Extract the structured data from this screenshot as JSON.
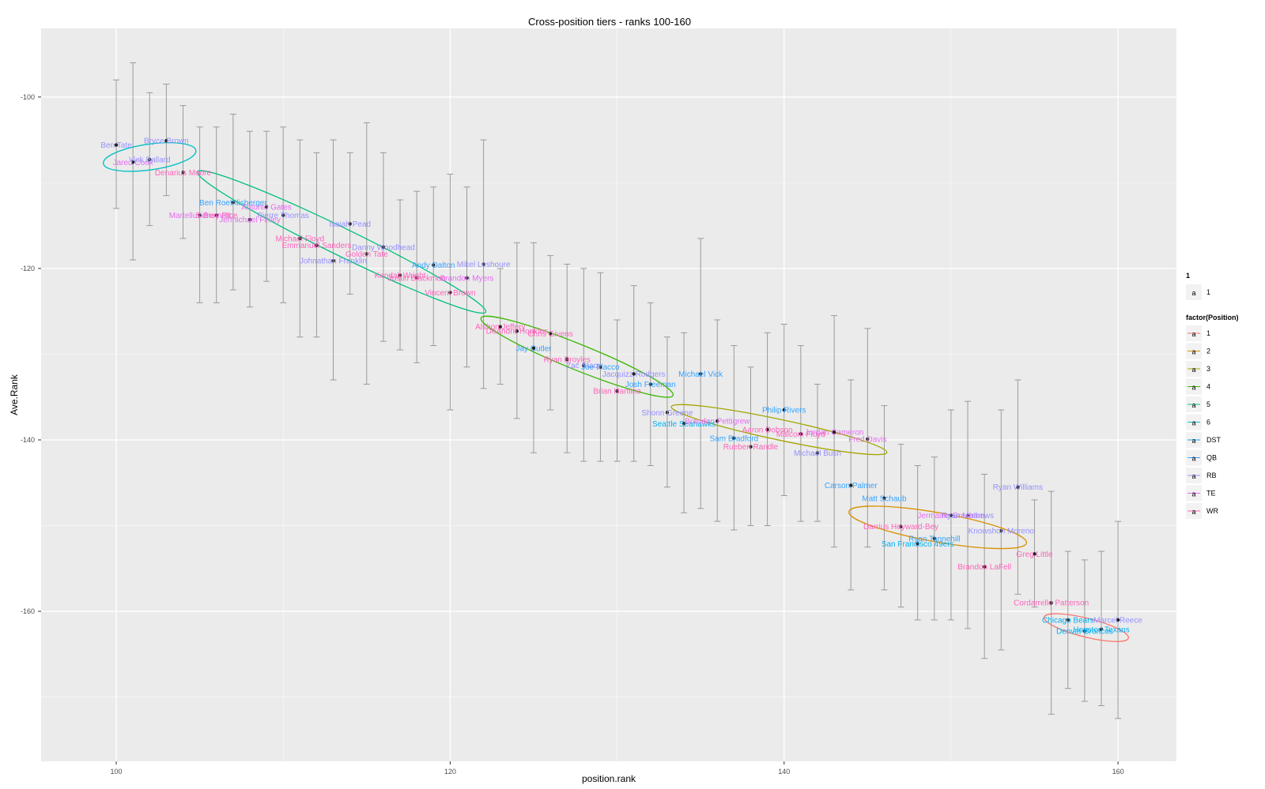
{
  "chart_data": {
    "type": "scatter",
    "title": "Cross-position tiers - ranks 100-160",
    "xlabel": "position.rank",
    "ylabel": "Ave.Rank",
    "xlim": [
      95.5,
      163.5
    ],
    "ylim": [
      -177.5,
      -92
    ],
    "x_ticks": [
      100,
      120,
      140,
      160
    ],
    "y_ticks": [
      -100,
      -120,
      -140,
      -160
    ],
    "grid": true,
    "legend_position": "right",
    "legend_titles": [
      "1",
      "factor(Position)"
    ],
    "legend_shape_entries": [
      {
        "label": "1",
        "glyph": "a"
      }
    ],
    "legend_entries": [
      {
        "label": "1",
        "color": "#F8766D",
        "glyph": "a"
      },
      {
        "label": "2",
        "color": "#D89000",
        "glyph": "a"
      },
      {
        "label": "3",
        "color": "#A3A500",
        "glyph": "a"
      },
      {
        "label": "4",
        "color": "#39B600",
        "glyph": "a"
      },
      {
        "label": "5",
        "color": "#00BF7D",
        "glyph": "a"
      },
      {
        "label": "6",
        "color": "#00BFC4",
        "glyph": "a"
      },
      {
        "label": "DST",
        "color": "#00B0F6",
        "glyph": "a"
      },
      {
        "label": "QB",
        "color": "#35A2FF",
        "glyph": "a"
      },
      {
        "label": "RB",
        "color": "#9590FF",
        "glyph": "a"
      },
      {
        "label": "TE",
        "color": "#E76BF3",
        "glyph": "a"
      },
      {
        "label": "WR",
        "color": "#FF62BC",
        "glyph": "a"
      }
    ],
    "tiers": [
      {
        "label": "6",
        "cx": 102,
        "cy": -107,
        "rx": 2.8,
        "ry": 1.5,
        "angle_deg": -8
      },
      {
        "label": "5",
        "cx": 113.5,
        "cy": -116.9,
        "rx": 9.6,
        "ry": 1.6,
        "angle_deg": 26
      },
      {
        "label": "4",
        "cx": 127.6,
        "cy": -130.3,
        "rx": 6.2,
        "ry": 1.5,
        "angle_deg": 22
      },
      {
        "label": "3",
        "cx": 139.7,
        "cy": -138.8,
        "rx": 6.6,
        "ry": 1.2,
        "angle_deg": 12
      },
      {
        "label": "2",
        "cx": 149.2,
        "cy": -150.2,
        "rx": 5.4,
        "ry": 1.7,
        "angle_deg": 10
      },
      {
        "label": "1",
        "cx": 158.1,
        "cy": -161.9,
        "rx": 2.6,
        "ry": 1.1,
        "angle_deg": 14
      }
    ],
    "points": [
      {
        "name": "Ben Tate",
        "pos": "RB",
        "x": 100,
        "y": -105.6,
        "ymin": -113,
        "ymax": -98
      },
      {
        "name": "Jared Cook",
        "pos": "TE",
        "x": 101,
        "y": -107.6,
        "ymin": -119,
        "ymax": -96
      },
      {
        "name": "Vick Ballard",
        "pos": "RB",
        "x": 102,
        "y": -107.3,
        "ymin": -115,
        "ymax": -99.5
      },
      {
        "name": "Bryce Brown",
        "pos": "RB",
        "x": 103,
        "y": -105.1,
        "ymin": -111.5,
        "ymax": -98.5
      },
      {
        "name": "Denarius Moore",
        "pos": "WR",
        "x": 104,
        "y": -108.8,
        "ymin": -116.5,
        "ymax": -101
      },
      {
        "name": "Martellus Bennett",
        "pos": "TE",
        "x": 105,
        "y": -113.8,
        "ymin": -124,
        "ymax": -103.5
      },
      {
        "name": "Sidney Rice",
        "pos": "WR",
        "x": 106,
        "y": -113.8,
        "ymin": -124,
        "ymax": -103.5
      },
      {
        "name": "Ben Roethlisberger",
        "pos": "QB",
        "x": 107,
        "y": -112.3,
        "ymin": -122.5,
        "ymax": -102
      },
      {
        "name": "Jermichael Finley",
        "pos": "TE",
        "x": 108,
        "y": -114.3,
        "ymin": -124.5,
        "ymax": -104
      },
      {
        "name": "Antonio Gates",
        "pos": "TE",
        "x": 109,
        "y": -112.8,
        "ymin": -121.5,
        "ymax": -104
      },
      {
        "name": "Pierre Thomas",
        "pos": "RB",
        "x": 110,
        "y": -113.8,
        "ymin": -124,
        "ymax": -103.5
      },
      {
        "name": "Michael Floyd",
        "pos": "WR",
        "x": 111,
        "y": -116.5,
        "ymin": -128,
        "ymax": -105
      },
      {
        "name": "Emmanuel Sanders",
        "pos": "WR",
        "x": 112,
        "y": -117.3,
        "ymin": -128,
        "ymax": -106.5
      },
      {
        "name": "Johnathan Franklin",
        "pos": "RB",
        "x": 113,
        "y": -119.1,
        "ymin": -133,
        "ymax": -105
      },
      {
        "name": "Isaiah Pead",
        "pos": "RB",
        "x": 114,
        "y": -114.8,
        "ymin": -123,
        "ymax": -106.5
      },
      {
        "name": "Golden Tate",
        "pos": "WR",
        "x": 115,
        "y": -118.3,
        "ymin": -133.5,
        "ymax": -103
      },
      {
        "name": "Danny Woodhead",
        "pos": "RB",
        "x": 116,
        "y": -117.5,
        "ymin": -128.5,
        "ymax": -106.5
      },
      {
        "name": "Kendall Wright",
        "pos": "WR",
        "x": 117,
        "y": -120.8,
        "ymin": -129.5,
        "ymax": -112
      },
      {
        "name": "Justin Blackmon",
        "pos": "WR",
        "x": 118,
        "y": -121.1,
        "ymin": -131,
        "ymax": -111
      },
      {
        "name": "Andy Dalton",
        "pos": "QB",
        "x": 119,
        "y": -119.6,
        "ymin": -129,
        "ymax": -110.5
      },
      {
        "name": "Vincent Brown",
        "pos": "WR",
        "x": 120,
        "y": -122.8,
        "ymin": -136.5,
        "ymax": -109
      },
      {
        "name": "Brandon Myers",
        "pos": "TE",
        "x": 121,
        "y": -121.1,
        "ymin": -131.5,
        "ymax": -110.5
      },
      {
        "name": "Mikel Leshoure",
        "pos": "RB",
        "x": 122,
        "y": -119.5,
        "ymin": -134,
        "ymax": -105
      },
      {
        "name": "Alshon Jeffery",
        "pos": "WR",
        "x": 123,
        "y": -126.8,
        "ymin": -133.5,
        "ymax": -120
      },
      {
        "name": "DeAndre Hopkins",
        "pos": "WR",
        "x": 124,
        "y": -127.3,
        "ymin": -137.5,
        "ymax": -117
      },
      {
        "name": "Jay Cutler",
        "pos": "QB",
        "x": 125,
        "y": -129.3,
        "ymin": -141.5,
        "ymax": -117
      },
      {
        "name": "Chris Givens",
        "pos": "WR",
        "x": 126,
        "y": -127.6,
        "ymin": -136.5,
        "ymax": -118.5
      },
      {
        "name": "Ryan Broyles",
        "pos": "WR",
        "x": 127,
        "y": -130.6,
        "ymin": -141.5,
        "ymax": -119.5
      },
      {
        "name": "Zac Stacy",
        "pos": "RB",
        "x": 128,
        "y": -131.3,
        "ymin": -142.5,
        "ymax": -120
      },
      {
        "name": "Joe Flacco",
        "pos": "QB",
        "x": 129,
        "y": -131.5,
        "ymin": -142.5,
        "ymax": -120.5
      },
      {
        "name": "Brian Hartline",
        "pos": "WR",
        "x": 130,
        "y": -134.3,
        "ymin": -142.5,
        "ymax": -126
      },
      {
        "name": "Jacquizz Rodgers",
        "pos": "RB",
        "x": 131,
        "y": -132.3,
        "ymin": -142.5,
        "ymax": -122
      },
      {
        "name": "Josh Freeman",
        "pos": "QB",
        "x": 132,
        "y": -133.5,
        "ymin": -143,
        "ymax": -124
      },
      {
        "name": "Shonn Greene",
        "pos": "RB",
        "x": 133,
        "y": -136.8,
        "ymin": -145.5,
        "ymax": -128
      },
      {
        "name": "Seattle Seahawks",
        "pos": "DST",
        "x": 134,
        "y": -138.1,
        "ymin": -148.5,
        "ymax": -127.5
      },
      {
        "name": "Michael Vick",
        "pos": "QB",
        "x": 135,
        "y": -132.3,
        "ymin": -148,
        "ymax": -116.5
      },
      {
        "name": "Brandon Pettigrew",
        "pos": "TE",
        "x": 136,
        "y": -137.8,
        "ymin": -149.5,
        "ymax": -126
      },
      {
        "name": "Sam Bradford",
        "pos": "QB",
        "x": 137,
        "y": -139.8,
        "ymin": -150.5,
        "ymax": -129
      },
      {
        "name": "Rueben Randle",
        "pos": "WR",
        "x": 138,
        "y": -140.8,
        "ymin": -150,
        "ymax": -131.5
      },
      {
        "name": "Aaron Dobson",
        "pos": "WR",
        "x": 139,
        "y": -138.8,
        "ymin": -150,
        "ymax": -127.5
      },
      {
        "name": "Philip Rivers",
        "pos": "QB",
        "x": 140,
        "y": -136.5,
        "ymin": -146.5,
        "ymax": -126.5
      },
      {
        "name": "Malcom Floyd",
        "pos": "WR",
        "x": 141,
        "y": -139.3,
        "ymin": -149.5,
        "ymax": -129
      },
      {
        "name": "Michael Bush",
        "pos": "RB",
        "x": 142,
        "y": -141.5,
        "ymin": -149.5,
        "ymax": -133.5
      },
      {
        "name": "Jordan Cameron",
        "pos": "TE",
        "x": 143,
        "y": -139.1,
        "ymin": -152.5,
        "ymax": -125.5
      },
      {
        "name": "Carson Palmer",
        "pos": "QB",
        "x": 144,
        "y": -145.3,
        "ymin": -157.5,
        "ymax": -133
      },
      {
        "name": "Fred Davis",
        "pos": "TE",
        "x": 145,
        "y": -139.9,
        "ymin": -152.5,
        "ymax": -127
      },
      {
        "name": "Matt Schaub",
        "pos": "QB",
        "x": 146,
        "y": -146.8,
        "ymin": -157.5,
        "ymax": -136
      },
      {
        "name": "Darrius Heyward-Bey",
        "pos": "WR",
        "x": 147,
        "y": -150.1,
        "ymin": -159.5,
        "ymax": -140.5
      },
      {
        "name": "San Francisco 49ers",
        "pos": "DST",
        "x": 148,
        "y": -152.1,
        "ymin": -161,
        "ymax": -143
      },
      {
        "name": "Ryan Tannehill",
        "pos": "QB",
        "x": 149,
        "y": -151.5,
        "ymin": -161,
        "ymax": -142
      },
      {
        "name": "Jermaine Gresham",
        "pos": "TE",
        "x": 150,
        "y": -148.8,
        "ymin": -161,
        "ymax": -136.5
      },
      {
        "name": "Ryan Mathews",
        "pos": "RB",
        "x": 151,
        "y": -148.8,
        "ymin": -162,
        "ymax": -135.5
      },
      {
        "name": "Brandon LaFell",
        "pos": "WR",
        "x": 152,
        "y": -154.8,
        "ymin": -165.5,
        "ymax": -144
      },
      {
        "name": "Knowshon Moreno",
        "pos": "RB",
        "x": 153,
        "y": -150.6,
        "ymin": -164.5,
        "ymax": -136.5
      },
      {
        "name": "Ryan Williams",
        "pos": "RB",
        "x": 154,
        "y": -145.5,
        "ymin": -158,
        "ymax": -133
      },
      {
        "name": "Greg Little",
        "pos": "WR",
        "x": 155,
        "y": -153.3,
        "ymin": -159.5,
        "ymax": -147
      },
      {
        "name": "Cordarrelle Patterson",
        "pos": "WR",
        "x": 156,
        "y": -159,
        "ymin": -172,
        "ymax": -146
      },
      {
        "name": "Chicago Bears",
        "pos": "DST",
        "x": 157,
        "y": -161,
        "ymin": -169,
        "ymax": -153
      },
      {
        "name": "Denver Broncos",
        "pos": "DST",
        "x": 158,
        "y": -162.3,
        "ymin": -170.5,
        "ymax": -154
      },
      {
        "name": "Houston Texans",
        "pos": "DST",
        "x": 159,
        "y": -162.1,
        "ymin": -171,
        "ymax": -153
      },
      {
        "name": "Marcel Reece",
        "pos": "RB",
        "x": 160,
        "y": -161,
        "ymin": -172.5,
        "ymax": -149.5
      }
    ]
  }
}
